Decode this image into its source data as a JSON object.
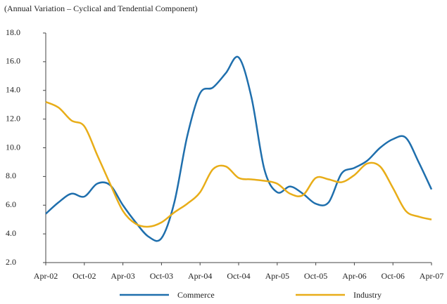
{
  "chart_data": {
    "type": "line",
    "subtitle": "(Annual Variation – Cyclical and Tendential Component)",
    "categories": [
      "Apr-02",
      null,
      null,
      "Oct-02",
      null,
      null,
      "Apr-03",
      null,
      null,
      "Oct-03",
      null,
      null,
      "Apr-04",
      null,
      null,
      "Oct-04",
      null,
      null,
      "Apr-05",
      null,
      null,
      "Oct-05",
      null,
      null,
      "Apr-06",
      null,
      null,
      "Oct-06",
      null,
      null,
      "Apr-07"
    ],
    "series": [
      {
        "name": "Commerce",
        "color": "#1f6fad",
        "values": [
          5.4,
          6.2,
          6.8,
          6.6,
          7.5,
          7.4,
          6.0,
          4.8,
          3.8,
          3.7,
          6.2,
          10.8,
          13.8,
          14.2,
          15.2,
          16.3,
          13.5,
          8.5,
          6.9,
          7.3,
          6.8,
          6.1,
          6.2,
          8.2,
          8.6,
          9.1,
          10.0,
          10.6,
          10.7,
          9.0,
          7.1
        ]
      },
      {
        "name": "Industry",
        "color": "#e8ad18",
        "values": [
          13.2,
          12.8,
          11.9,
          11.5,
          9.5,
          7.5,
          5.6,
          4.7,
          4.5,
          4.8,
          5.5,
          6.1,
          6.9,
          8.5,
          8.7,
          7.9,
          7.8,
          7.7,
          7.5,
          6.8,
          6.7,
          7.9,
          7.8,
          7.6,
          8.1,
          8.9,
          8.7,
          7.2,
          5.6,
          5.2,
          5.0
        ]
      }
    ],
    "ylim": [
      2,
      18
    ],
    "yticks": [
      {
        "value": 2,
        "label": "2.0"
      },
      {
        "value": 4,
        "label": "4.0"
      },
      {
        "value": 6,
        "label": "6.0"
      },
      {
        "value": 8,
        "label": "8.0"
      },
      {
        "value": 10,
        "label": "10.0"
      },
      {
        "value": 12,
        "label": "12.0"
      },
      {
        "value": 14,
        "label": "14.0"
      },
      {
        "value": 16,
        "label": "16.0"
      },
      {
        "value": 18,
        "label": "18.0"
      }
    ],
    "grid": false,
    "legend": "bottom"
  }
}
